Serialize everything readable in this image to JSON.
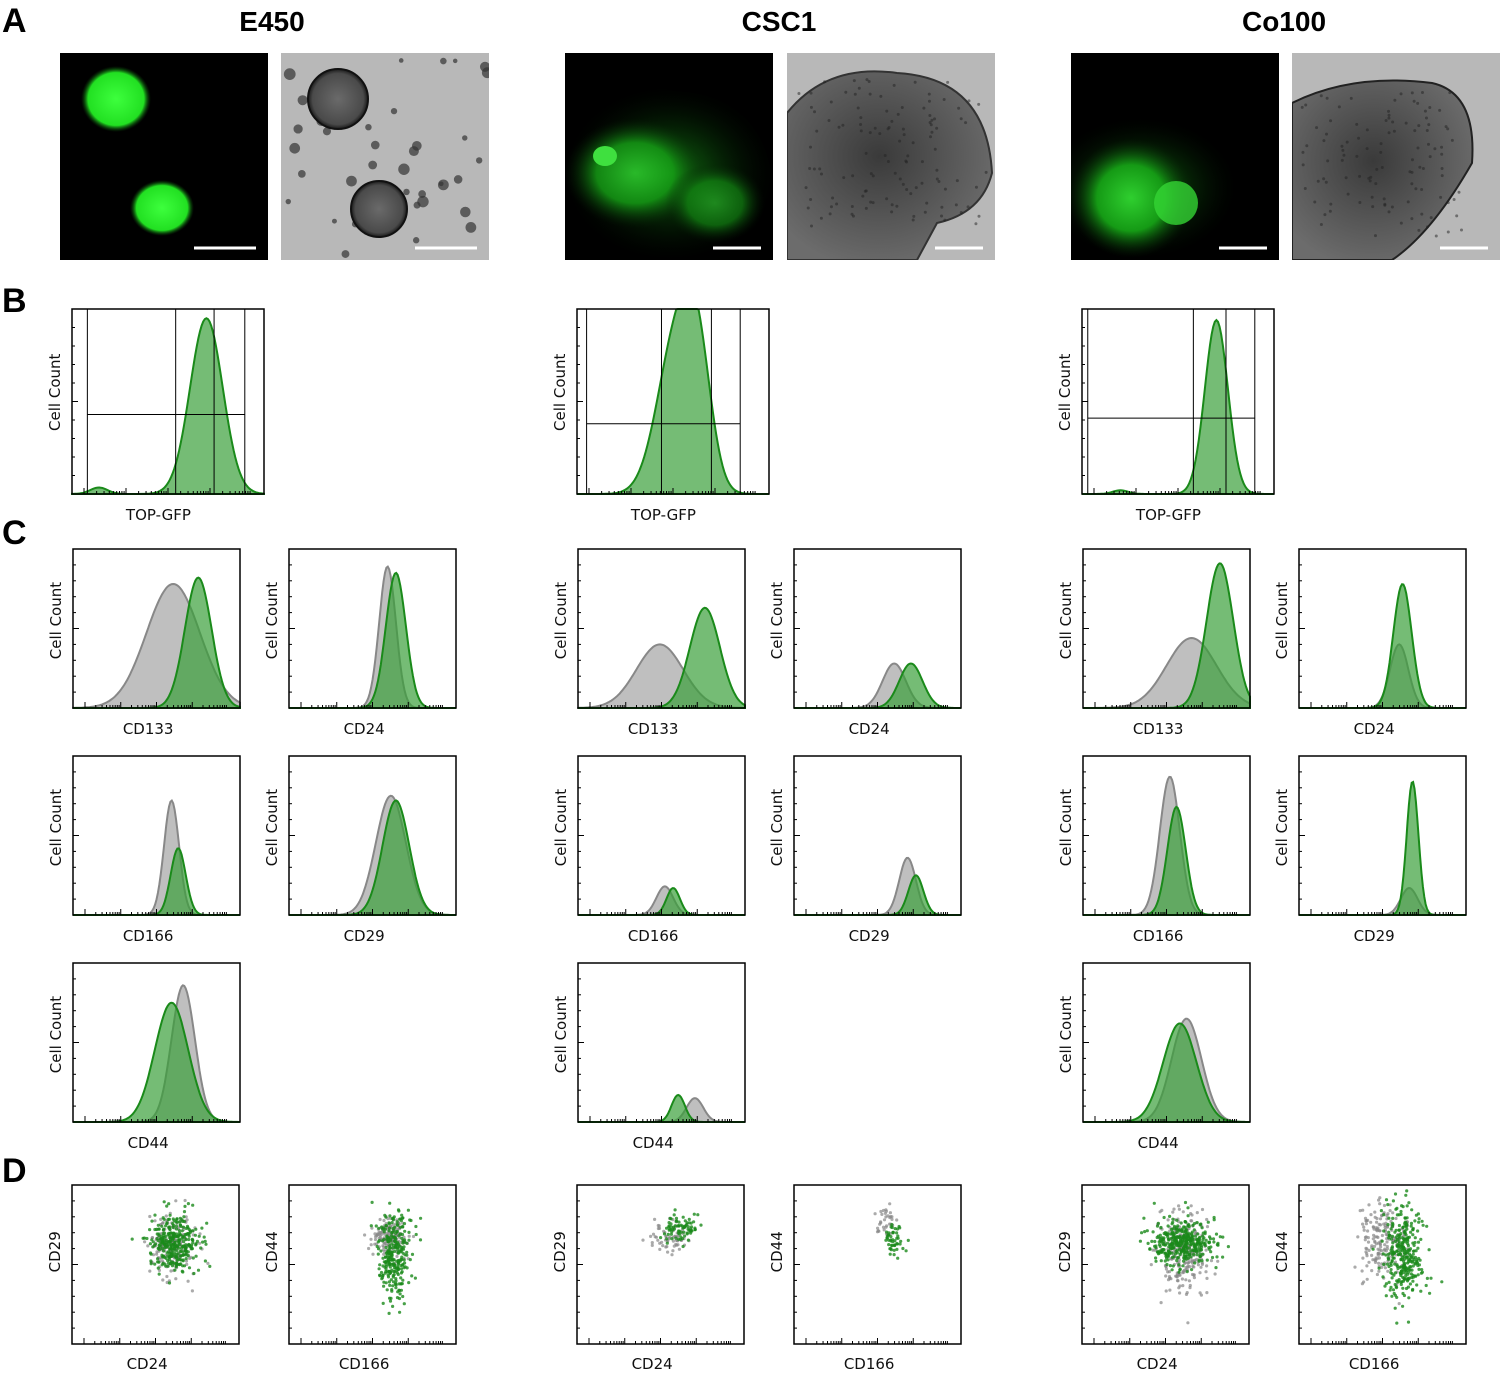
{
  "panel_letters": [
    "A",
    "B",
    "C",
    "D"
  ],
  "columns": [
    {
      "title": "E450"
    },
    {
      "title": "CSC1"
    },
    {
      "title": "Co100"
    }
  ],
  "axis_text": {
    "cell_count": "Cell Count",
    "top_gfp": "TOP-GFP",
    "cd133": "CD133",
    "cd24": "CD24",
    "cd166": "CD166",
    "cd29": "CD29",
    "cd44": "CD44"
  },
  "colors": {
    "gfp": "#1a8a1a",
    "gfp_fill": "#3aa03a",
    "control": "#888888",
    "control_fill": "#b4b4b4",
    "fluor_bg": "#000000",
    "brightfield_bg": "#b8b8b8"
  },
  "chart_data": [
    {
      "type": "area",
      "panel": "B",
      "sample": "E450",
      "xlabel": "TOP-GFP",
      "ylabel": "Cell Count",
      "series": [
        {
          "peaks": [
            [
              0.14,
              0.045,
              0.035
            ],
            [
              0.7,
              0.085,
              0.95
            ]
          ]
        }
      ]
    },
    {
      "type": "area",
      "panel": "B",
      "sample": "CSC1",
      "xlabel": "TOP-GFP",
      "ylabel": "Cell Count",
      "series": [
        {
          "peaks": [
            [
              0.52,
              0.1,
              0.85
            ],
            [
              0.63,
              0.07,
              0.55
            ]
          ]
        }
      ]
    },
    {
      "type": "area",
      "panel": "B",
      "sample": "Co100",
      "xlabel": "TOP-GFP",
      "ylabel": "Cell Count",
      "series": [
        {
          "peaks": [
            [
              0.2,
              0.04,
              0.02
            ],
            [
              0.7,
              0.06,
              0.94
            ]
          ]
        }
      ]
    },
    {
      "type": "area",
      "panel": "C",
      "sample": "E450",
      "marker": "CD133",
      "xlabel": "CD133",
      "ylabel": "Cell Count",
      "series": [
        {
          "role": "control",
          "peaks": [
            [
              0.6,
              0.16,
              0.78
            ]
          ]
        },
        {
          "role": "stain",
          "peaks": [
            [
              0.75,
              0.08,
              0.82
            ]
          ]
        }
      ]
    },
    {
      "type": "area",
      "panel": "C",
      "sample": "E450",
      "marker": "CD24",
      "xlabel": "CD24",
      "ylabel": "Cell Count",
      "series": [
        {
          "role": "control",
          "peaks": [
            [
              0.59,
              0.05,
              0.89
            ]
          ]
        },
        {
          "role": "stain",
          "peaks": [
            [
              0.64,
              0.06,
              0.85
            ]
          ]
        }
      ]
    },
    {
      "type": "area",
      "panel": "C",
      "sample": "E450",
      "marker": "CD166",
      "xlabel": "CD166",
      "ylabel": "Cell Count",
      "series": [
        {
          "role": "control",
          "peaks": [
            [
              0.59,
              0.045,
              0.72
            ]
          ]
        },
        {
          "role": "stain",
          "peaks": [
            [
              0.63,
              0.045,
              0.42
            ]
          ]
        }
      ]
    },
    {
      "type": "area",
      "panel": "C",
      "sample": "E450",
      "marker": "CD29",
      "xlabel": "CD29",
      "ylabel": "Cell Count",
      "series": [
        {
          "role": "control",
          "peaks": [
            [
              0.61,
              0.09,
              0.75
            ]
          ]
        },
        {
          "role": "stain",
          "peaks": [
            [
              0.64,
              0.08,
              0.72
            ]
          ]
        }
      ]
    },
    {
      "type": "area",
      "panel": "C",
      "sample": "E450",
      "marker": "CD44",
      "xlabel": "CD44",
      "ylabel": "Cell Count",
      "series": [
        {
          "role": "control",
          "peaks": [
            [
              0.66,
              0.07,
              0.86
            ]
          ]
        },
        {
          "role": "stain",
          "peaks": [
            [
              0.59,
              0.1,
              0.75
            ]
          ]
        }
      ]
    },
    {
      "type": "area",
      "panel": "C",
      "sample": "CSC1",
      "marker": "CD133",
      "xlabel": "CD133",
      "ylabel": "Cell Count",
      "series": [
        {
          "role": "control",
          "peaks": [
            [
              0.49,
              0.14,
              0.4
            ]
          ]
        },
        {
          "role": "stain",
          "peaks": [
            [
              0.76,
              0.09,
              0.63
            ]
          ]
        }
      ]
    },
    {
      "type": "area",
      "panel": "C",
      "sample": "CSC1",
      "marker": "CD24",
      "xlabel": "CD24",
      "ylabel": "Cell Count",
      "series": [
        {
          "role": "control",
          "peaks": [
            [
              0.6,
              0.07,
              0.28
            ]
          ]
        },
        {
          "role": "stain",
          "peaks": [
            [
              0.7,
              0.07,
              0.28
            ]
          ]
        }
      ]
    },
    {
      "type": "area",
      "panel": "C",
      "sample": "CSC1",
      "marker": "CD166",
      "xlabel": "CD166",
      "ylabel": "Cell Count",
      "series": [
        {
          "role": "control",
          "peaks": [
            [
              0.52,
              0.05,
              0.18
            ]
          ]
        },
        {
          "role": "stain",
          "peaks": [
            [
              0.57,
              0.04,
              0.17
            ]
          ]
        }
      ]
    },
    {
      "type": "area",
      "panel": "C",
      "sample": "CSC1",
      "marker": "CD29",
      "xlabel": "CD29",
      "ylabel": "Cell Count",
      "series": [
        {
          "role": "control",
          "peaks": [
            [
              0.68,
              0.05,
              0.36
            ]
          ]
        },
        {
          "role": "stain",
          "peaks": [
            [
              0.73,
              0.045,
              0.25
            ]
          ]
        }
      ]
    },
    {
      "type": "area",
      "panel": "C",
      "sample": "CSC1",
      "marker": "CD44",
      "xlabel": "CD44",
      "ylabel": "Cell Count",
      "series": [
        {
          "role": "control",
          "peaks": [
            [
              0.7,
              0.05,
              0.15
            ]
          ]
        },
        {
          "role": "stain",
          "peaks": [
            [
              0.6,
              0.04,
              0.17
            ]
          ]
        }
      ]
    },
    {
      "type": "area",
      "panel": "C",
      "sample": "Co100",
      "marker": "CD133",
      "xlabel": "CD133",
      "ylabel": "Cell Count",
      "series": [
        {
          "role": "control",
          "peaks": [
            [
              0.65,
              0.15,
              0.44
            ]
          ]
        },
        {
          "role": "stain",
          "peaks": [
            [
              0.82,
              0.08,
              0.91
            ]
          ]
        }
      ]
    },
    {
      "type": "area",
      "panel": "C",
      "sample": "Co100",
      "marker": "CD24",
      "xlabel": "CD24",
      "ylabel": "Cell Count",
      "series": [
        {
          "role": "control",
          "peaks": [
            [
              0.6,
              0.055,
              0.4
            ]
          ]
        },
        {
          "role": "stain",
          "peaks": [
            [
              0.62,
              0.055,
              0.78
            ]
          ]
        }
      ]
    },
    {
      "type": "area",
      "panel": "C",
      "sample": "Co100",
      "marker": "CD166",
      "xlabel": "CD166",
      "ylabel": "Cell Count",
      "series": [
        {
          "role": "control",
          "peaks": [
            [
              0.52,
              0.06,
              0.87
            ]
          ]
        },
        {
          "role": "stain",
          "peaks": [
            [
              0.56,
              0.055,
              0.68
            ]
          ]
        }
      ]
    },
    {
      "type": "area",
      "panel": "C",
      "sample": "Co100",
      "marker": "CD29",
      "xlabel": "CD29",
      "ylabel": "Cell Count",
      "series": [
        {
          "role": "control",
          "peaks": [
            [
              0.66,
              0.05,
              0.17
            ]
          ]
        },
        {
          "role": "stain",
          "peaks": [
            [
              0.68,
              0.035,
              0.84
            ]
          ]
        }
      ]
    },
    {
      "type": "area",
      "panel": "C",
      "sample": "Co100",
      "marker": "CD44",
      "xlabel": "CD44",
      "ylabel": "Cell Count",
      "series": [
        {
          "role": "control",
          "peaks": [
            [
              0.62,
              0.09,
              0.65
            ]
          ]
        },
        {
          "role": "stain",
          "peaks": [
            [
              0.58,
              0.1,
              0.62
            ]
          ]
        }
      ]
    },
    {
      "type": "scatter",
      "panel": "D",
      "sample": "E450",
      "xlabel": "CD24",
      "ylabel": "CD29",
      "series": [
        {
          "role": "control",
          "center": [
            0.6,
            0.62
          ],
          "spread": [
            0.07,
            0.11
          ],
          "n": 180
        },
        {
          "role": "stain",
          "center": [
            0.62,
            0.63
          ],
          "spread": [
            0.075,
            0.09
          ],
          "n": 320
        }
      ]
    },
    {
      "type": "scatter",
      "panel": "D",
      "sample": "E450",
      "xlabel": "CD166",
      "ylabel": "CD44",
      "series": [
        {
          "role": "control",
          "center": [
            0.6,
            0.68
          ],
          "spread": [
            0.05,
            0.06
          ],
          "n": 150
        },
        {
          "role": "stain",
          "center": [
            0.63,
            0.55
          ],
          "spread": [
            0.05,
            0.14
          ],
          "n": 280
        }
      ]
    },
    {
      "type": "scatter",
      "panel": "D",
      "sample": "CSC1",
      "xlabel": "CD24",
      "ylabel": "CD29",
      "series": [
        {
          "role": "control",
          "center": [
            0.55,
            0.67
          ],
          "spread": [
            0.06,
            0.05
          ],
          "n": 60
        },
        {
          "role": "stain",
          "center": [
            0.63,
            0.73
          ],
          "spread": [
            0.06,
            0.04
          ],
          "n": 80
        }
      ]
    },
    {
      "type": "scatter",
      "panel": "D",
      "sample": "CSC1",
      "xlabel": "CD166",
      "ylabel": "CD44",
      "series": [
        {
          "role": "control",
          "center": [
            0.55,
            0.78
          ],
          "spread": [
            0.04,
            0.05
          ],
          "n": 35
        },
        {
          "role": "stain",
          "center": [
            0.6,
            0.66
          ],
          "spread": [
            0.03,
            0.07
          ],
          "n": 50
        }
      ]
    },
    {
      "type": "scatter",
      "panel": "D",
      "sample": "Co100",
      "xlabel": "CD24",
      "ylabel": "CD29",
      "series": [
        {
          "role": "control",
          "center": [
            0.6,
            0.58
          ],
          "spread": [
            0.08,
            0.14
          ],
          "n": 240
        },
        {
          "role": "stain",
          "center": [
            0.6,
            0.64
          ],
          "spread": [
            0.09,
            0.07
          ],
          "n": 380
        }
      ]
    },
    {
      "type": "scatter",
      "panel": "D",
      "sample": "Co100",
      "xlabel": "CD166",
      "ylabel": "CD44",
      "series": [
        {
          "role": "control",
          "center": [
            0.5,
            0.64
          ],
          "spread": [
            0.07,
            0.12
          ],
          "n": 180
        },
        {
          "role": "stain",
          "center": [
            0.62,
            0.57
          ],
          "spread": [
            0.06,
            0.14
          ],
          "n": 320
        }
      ]
    }
  ]
}
